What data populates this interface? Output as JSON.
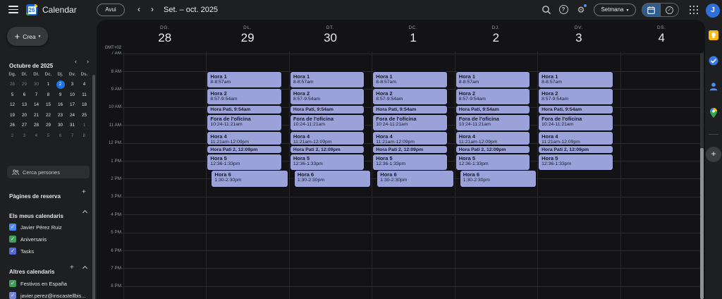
{
  "topbar": {
    "logo_number": "26",
    "app_name": "Calendar",
    "today_button": "Avui",
    "prev_icon": "‹",
    "next_icon": "›",
    "title": "Set. – oct. 2025",
    "help_glyph": "?",
    "gear_glyph": "⚙",
    "view_selector": "Setmana",
    "view_caret": "▾",
    "check_glyph": "✓",
    "avatar_letter": "J",
    "icons": [
      "menu-icon",
      "search-icon",
      "help-icon",
      "settings-icon",
      "calendar-view-icon",
      "tasks-view-icon",
      "apps-grid-icon"
    ]
  },
  "sidebar": {
    "create_button": "Crea",
    "create_plus": "+",
    "create_caret": "▾",
    "mini_calendar": {
      "title": "Octubre de 2025",
      "prev_icon": "‹",
      "next_icon": "›",
      "dow": [
        "Dg.",
        "Dl.",
        "Dt.",
        "Dc.",
        "Dj.",
        "Dv.",
        "Ds."
      ],
      "weeks": [
        [
          {
            "d": "28",
            "muted": true
          },
          {
            "d": "29",
            "muted": true
          },
          {
            "d": "30",
            "muted": true
          },
          {
            "d": "1"
          },
          {
            "d": "2",
            "selected": true
          },
          {
            "d": "3"
          },
          {
            "d": "4"
          }
        ],
        [
          {
            "d": "5"
          },
          {
            "d": "6"
          },
          {
            "d": "7"
          },
          {
            "d": "8"
          },
          {
            "d": "9"
          },
          {
            "d": "10"
          },
          {
            "d": "11"
          }
        ],
        [
          {
            "d": "12"
          },
          {
            "d": "13"
          },
          {
            "d": "14"
          },
          {
            "d": "15"
          },
          {
            "d": "16"
          },
          {
            "d": "17"
          },
          {
            "d": "18"
          }
        ],
        [
          {
            "d": "19"
          },
          {
            "d": "20"
          },
          {
            "d": "21"
          },
          {
            "d": "22"
          },
          {
            "d": "23"
          },
          {
            "d": "24"
          },
          {
            "d": "25"
          }
        ],
        [
          {
            "d": "26"
          },
          {
            "d": "27"
          },
          {
            "d": "28"
          },
          {
            "d": "29"
          },
          {
            "d": "30"
          },
          {
            "d": "31"
          },
          {
            "d": "1",
            "muted": true
          }
        ],
        [
          {
            "d": "2",
            "muted": true
          },
          {
            "d": "3",
            "muted": true
          },
          {
            "d": "4",
            "muted": true
          },
          {
            "d": "5",
            "muted": true
          },
          {
            "d": "6",
            "muted": true
          },
          {
            "d": "7",
            "muted": true
          },
          {
            "d": "8",
            "muted": true
          }
        ]
      ]
    },
    "search_placeholder": "Cerca persones",
    "booking_pages_label": "Pàgines de reserva",
    "my_calendars_label": "Els meus calendaris",
    "my_calendars": [
      {
        "label": "Javier Pérez Ruiz",
        "color": "#4c8bf5"
      },
      {
        "label": "Aniversaris",
        "color": "#3f9e57"
      },
      {
        "label": "Tasks",
        "color": "#5368d8"
      }
    ],
    "other_calendars_label": "Altres calendaris",
    "other_calendars": [
      {
        "label": "Festivos en España",
        "color": "#3f9e57"
      },
      {
        "label": "javier.perez@inscastellbis...",
        "color": "#7383d6"
      }
    ]
  },
  "calendar": {
    "timezone": "GMT+02",
    "time_labels": [
      "7 AM",
      "8 AM",
      "9 AM",
      "10 AM",
      "11 AM",
      "12 PM",
      "1 PM",
      "2 PM",
      "3 PM",
      "4 PM",
      "5 PM",
      "6 PM",
      "7 PM",
      "8 PM"
    ],
    "event_color": "#9aa2d9",
    "event_text_color": "#171a2c",
    "days": [
      {
        "dow": "DG.",
        "date": "28",
        "events": "none"
      },
      {
        "dow": "DL.",
        "date": "29",
        "events": "full"
      },
      {
        "dow": "DT.",
        "date": "30",
        "events": "full"
      },
      {
        "dow": "DC.",
        "date": "1",
        "events": "full"
      },
      {
        "dow": "DJ.",
        "date": "2",
        "events": "full"
      },
      {
        "dow": "DV.",
        "date": "3",
        "events": "short"
      },
      {
        "dow": "DS.",
        "date": "4",
        "events": "none"
      }
    ],
    "event_sets": {
      "none": [],
      "full": [
        {
          "title": "Hora 1",
          "time": "8-8:57am",
          "startMin": 60,
          "endMin": 117
        },
        {
          "title": "Hora 2",
          "time": "8:57-9:54am",
          "startMin": 117,
          "endMin": 174
        },
        {
          "title": "Hora Pati",
          "time": "9:54am",
          "startMin": 174,
          "endMin": 204,
          "compact": true
        },
        {
          "title": "Fora de l'oficina",
          "time": "10:24-11:21am",
          "startMin": 204,
          "endMin": 261
        },
        {
          "title": "Hora 4",
          "time": "11:21am-12:09pm",
          "startMin": 261,
          "endMin": 309
        },
        {
          "title": "Hora Pati 2",
          "time": "12:09pm",
          "startMin": 309,
          "endMin": 336,
          "compact": true
        },
        {
          "title": "Hora 5",
          "time": "12:36-1:33pm",
          "startMin": 336,
          "endMin": 393
        },
        {
          "title": "Hora 6",
          "time": "1:30-2:30pm",
          "startMin": 390,
          "endMin": 450,
          "indent": true
        }
      ],
      "short": [
        {
          "title": "Hora 1",
          "time": "8-8:57am",
          "startMin": 60,
          "endMin": 117
        },
        {
          "title": "Hora 2",
          "time": "8:57-9:54am",
          "startMin": 117,
          "endMin": 174
        },
        {
          "title": "Hora Pati",
          "time": "9:54am",
          "startMin": 174,
          "endMin": 204,
          "compact": true
        },
        {
          "title": "Fora de l'oficina",
          "time": "10:24-11:21am",
          "startMin": 204,
          "endMin": 261
        },
        {
          "title": "Hora 4",
          "time": "11:21am-12:09pm",
          "startMin": 261,
          "endMin": 309
        },
        {
          "title": "Hora Pati 2",
          "time": "12:09pm",
          "startMin": 309,
          "endMin": 336,
          "compact": true
        },
        {
          "title": "Hora 5",
          "time": "12:36-1:33pm",
          "startMin": 336,
          "endMin": 393
        }
      ]
    }
  },
  "right_panel": {
    "icons": [
      "keep-icon",
      "tasks-icon",
      "contacts-icon",
      "maps-icon"
    ],
    "get_addons_label": "+"
  }
}
